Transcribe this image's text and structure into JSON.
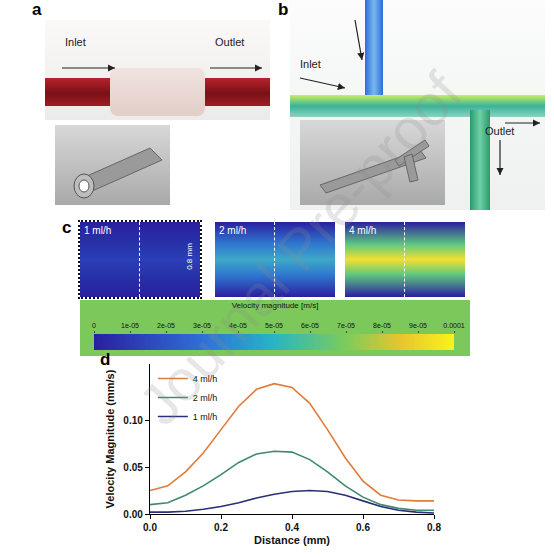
{
  "figure": {
    "watermark": "Journal Pre-proof",
    "panels": {
      "a": {
        "panel": "a",
        "inlet": "Inlet",
        "outlet": "Outlet"
      },
      "b": {
        "panel": "b",
        "inlet": "Inlet",
        "outlet": "Outlet"
      },
      "c": {
        "panel": "c",
        "images": [
          {
            "label": "1 ml/h"
          },
          {
            "label": "2 ml/h"
          },
          {
            "label": "4 ml/h"
          }
        ],
        "scale_label": "0.8 mm",
        "colorbar": {
          "title": "Velocity magnitude [m/s]",
          "range": [
            0,
            0.0001
          ],
          "ticks": [
            0,
            {
              "value": 1e-05,
              "label": "1e-05"
            },
            {
              "value": 2e-05,
              "label": "2e-05"
            },
            {
              "value": 3e-05,
              "label": "3e-05"
            },
            {
              "value": 4e-05,
              "label": "4e-05"
            },
            {
              "value": 5e-05,
              "label": "5e-05"
            },
            {
              "value": 6e-05,
              "label": "6e-05"
            },
            {
              "value": 7e-05,
              "label": "7e-05"
            },
            {
              "value": 8e-05,
              "label": "8e-05"
            },
            {
              "value": 9e-05,
              "label": "9e-05"
            },
            0.0001
          ]
        }
      }
    }
  },
  "chart_data": {
    "panel": "d",
    "type": "line",
    "xlabel": "Distance (mm)",
    "ylabel": "Velocity Magnitude (mm/s)",
    "x": [
      0,
      0.05,
      0.1,
      0.15,
      0.2,
      0.25,
      0.3,
      0.35,
      0.4,
      0.45,
      0.5,
      0.55,
      0.6,
      0.65,
      0.7,
      0.75,
      0.8
    ],
    "series": [
      {
        "name": "4 ml/h",
        "color": "#e07b39",
        "values": [
          0.025,
          0.03,
          0.045,
          0.065,
          0.09,
          0.115,
          0.133,
          0.139,
          0.135,
          0.118,
          0.09,
          0.06,
          0.035,
          0.02,
          0.015,
          0.014,
          0.014
        ]
      },
      {
        "name": "2 ml/h",
        "color": "#3d8a6e",
        "values": [
          0.01,
          0.012,
          0.02,
          0.03,
          0.042,
          0.055,
          0.064,
          0.067,
          0.066,
          0.058,
          0.045,
          0.03,
          0.018,
          0.01,
          0.006,
          0.004,
          0.004
        ]
      },
      {
        "name": "1 ml/h",
        "color": "#2c2f7a",
        "values": [
          0.002,
          0.002,
          0.003,
          0.005,
          0.008,
          0.012,
          0.017,
          0.021,
          0.024,
          0.025,
          0.024,
          0.02,
          0.014,
          0.008,
          0.004,
          0.002,
          0.001
        ]
      }
    ],
    "xlim": [
      0,
      0.8
    ],
    "ylim": [
      0,
      0.16
    ],
    "xticks": [
      {
        "value": 0,
        "label": "0.0"
      },
      0.2,
      0.4,
      0.6,
      0.8
    ],
    "yticks": [
      {
        "value": 0,
        "label": "0.00"
      },
      0.05,
      {
        "value": 0.1,
        "label": "0.10"
      }
    ],
    "legend": "upper left",
    "grid": false
  }
}
